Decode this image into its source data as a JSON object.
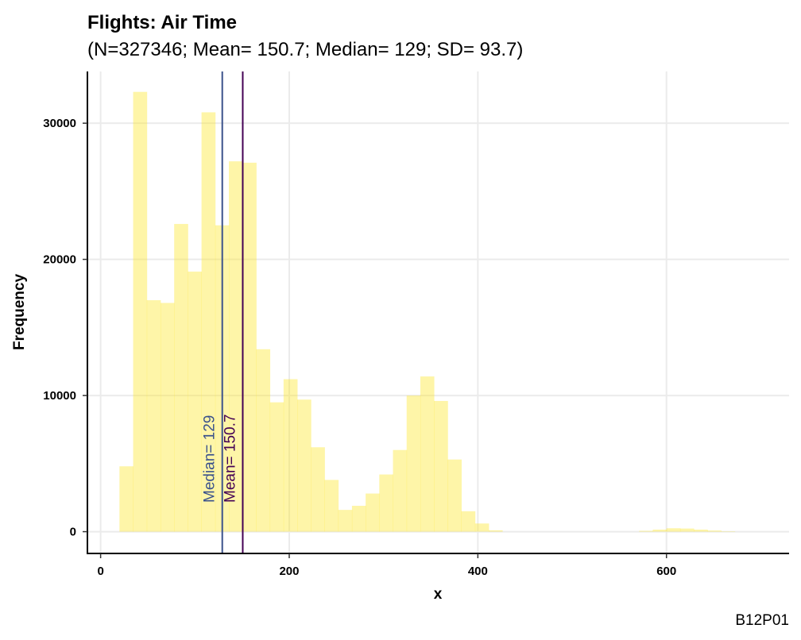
{
  "chart_data": {
    "type": "bar",
    "title": "Flights: Air Time",
    "subtitle": "(N=327346; Mean= 150.7; Median= 129; SD= 93.7)",
    "xlabel": "x",
    "ylabel": "Frequency",
    "caption": "B12P01",
    "xlim": [
      -14,
      730
    ],
    "ylim": [
      -1600,
      33800
    ],
    "x_ticks": [
      0,
      200,
      400,
      600
    ],
    "y_ticks": [
      0,
      10000,
      20000,
      30000
    ],
    "x_tick_labels": [
      "0",
      "200",
      "400",
      "600"
    ],
    "y_tick_labels": [
      "0",
      "10000",
      "20000",
      "30000"
    ],
    "grid": true,
    "bin_width": 14.5,
    "bins": [
      {
        "x0": 20,
        "x1": 34.5,
        "count": 4800
      },
      {
        "x0": 34.5,
        "x1": 49,
        "count": 32300
      },
      {
        "x0": 49,
        "x1": 63.5,
        "count": 17000
      },
      {
        "x0": 63.5,
        "x1": 78,
        "count": 16800
      },
      {
        "x0": 78,
        "x1": 92.5,
        "count": 22600
      },
      {
        "x0": 92.5,
        "x1": 107,
        "count": 19100
      },
      {
        "x0": 107,
        "x1": 121.5,
        "count": 30800
      },
      {
        "x0": 121.5,
        "x1": 136,
        "count": 22500
      },
      {
        "x0": 136,
        "x1": 150.5,
        "count": 27200
      },
      {
        "x0": 150.5,
        "x1": 165,
        "count": 27100
      },
      {
        "x0": 165,
        "x1": 179.5,
        "count": 13400
      },
      {
        "x0": 179.5,
        "x1": 194,
        "count": 9500
      },
      {
        "x0": 194,
        "x1": 208.5,
        "count": 11200
      },
      {
        "x0": 208.5,
        "x1": 223,
        "count": 9700
      },
      {
        "x0": 223,
        "x1": 237.5,
        "count": 6200
      },
      {
        "x0": 237.5,
        "x1": 252,
        "count": 3800
      },
      {
        "x0": 252,
        "x1": 266.5,
        "count": 1600
      },
      {
        "x0": 266.5,
        "x1": 281,
        "count": 1900
      },
      {
        "x0": 281,
        "x1": 295.5,
        "count": 2800
      },
      {
        "x0": 295.5,
        "x1": 310,
        "count": 4200
      },
      {
        "x0": 310,
        "x1": 324.5,
        "count": 6000
      },
      {
        "x0": 324.5,
        "x1": 339,
        "count": 10000
      },
      {
        "x0": 339,
        "x1": 353.5,
        "count": 11400
      },
      {
        "x0": 353.5,
        "x1": 368,
        "count": 9600
      },
      {
        "x0": 368,
        "x1": 382.5,
        "count": 5300
      },
      {
        "x0": 382.5,
        "x1": 397,
        "count": 1500
      },
      {
        "x0": 397,
        "x1": 411.5,
        "count": 600
      },
      {
        "x0": 411.5,
        "x1": 426,
        "count": 100
      },
      {
        "x0": 571,
        "x1": 585.5,
        "count": 60
      },
      {
        "x0": 585.5,
        "x1": 600,
        "count": 150
      },
      {
        "x0": 600,
        "x1": 614.5,
        "count": 250
      },
      {
        "x0": 614.5,
        "x1": 629,
        "count": 230
      },
      {
        "x0": 629,
        "x1": 643.5,
        "count": 150
      },
      {
        "x0": 643.5,
        "x1": 658,
        "count": 80
      },
      {
        "x0": 658,
        "x1": 672.5,
        "count": 30
      }
    ],
    "reference_lines": [
      {
        "value": 129,
        "label": "Median= 129",
        "color": "#3B528B"
      },
      {
        "value": 150.7,
        "label": "Mean= 150.7",
        "color": "#440154"
      }
    ],
    "bar_color": "#FDE725",
    "bar_opacity": 0.4
  }
}
